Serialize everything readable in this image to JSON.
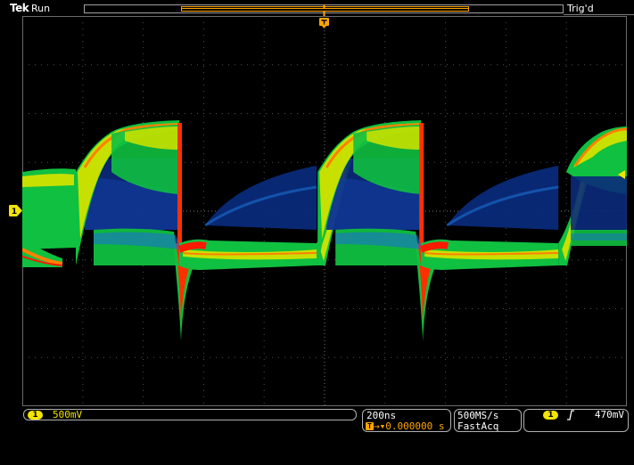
{
  "topbar": {
    "brand": "Tek",
    "run_state": "Run",
    "trigger_state": "Trig'd"
  },
  "channel1": {
    "marker_label": "1",
    "scale": "500mV",
    "color": "#f2e400"
  },
  "horizontal": {
    "time_per_div": "200ns",
    "trigger_position": "0.000000 s",
    "trigger_pos_icon": "T",
    "trigger_pos_icon_name": "trigger-position-icon",
    "accent": "#ffa500"
  },
  "acquisition": {
    "sample_rate": "500MS/s",
    "mode": "FastAcq"
  },
  "trigger": {
    "source": "1",
    "slope_icon": "rising-edge-icon",
    "level": "470mV"
  },
  "display": {
    "divisions_x": 10,
    "divisions_y": 8,
    "waveform_colors": [
      "#0a2a7a",
      "#1a6fd0",
      "#10c040",
      "#c8e000",
      "#ff8000",
      "#ff1a00"
    ]
  }
}
